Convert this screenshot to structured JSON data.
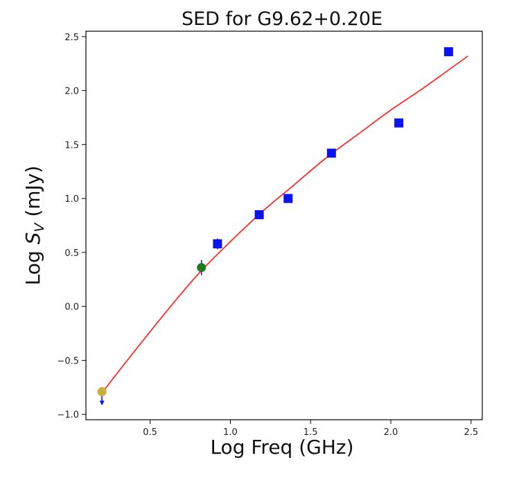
{
  "chart_data": {
    "type": "scatter",
    "title": "SED for G9.62+0.20E",
    "xlabel": "Log  Freq  (GHz)",
    "ylabel_prefix": "Log  ",
    "ylabel_symbol": "S",
    "ylabel_subscript": "V",
    "ylabel_suffix": " (mJy)",
    "xlim": [
      0.1,
      2.57
    ],
    "ylim": [
      -1.05,
      2.55
    ],
    "x_ticks": [
      {
        "value": 0.5,
        "label": "0.5"
      },
      {
        "value": 1.0,
        "label": "1.0"
      },
      {
        "value": 1.5,
        "label": "1.5"
      },
      {
        "value": 2.0,
        "label": "2.0"
      },
      {
        "value": 2.5,
        "label": "2.5"
      }
    ],
    "y_ticks": [
      {
        "value": -1.0,
        "label": "−1.0"
      },
      {
        "value": -0.5,
        "label": "−0.5"
      },
      {
        "value": 0.0,
        "label": "0.0"
      },
      {
        "value": 0.5,
        "label": "0.5"
      },
      {
        "value": 1.0,
        "label": "1.0"
      },
      {
        "value": 1.5,
        "label": "1.5"
      },
      {
        "value": 2.0,
        "label": "2.0"
      },
      {
        "value": 2.5,
        "label": "2.5"
      }
    ],
    "grid": false,
    "legend": "none",
    "series": [
      {
        "marker": "square",
        "color": "#0a14f0",
        "points": [
          {
            "x": 0.92,
            "y": 0.58,
            "err": 0.05
          },
          {
            "x": 1.18,
            "y": 0.85,
            "err": 0.03
          },
          {
            "x": 1.36,
            "y": 1.0,
            "err": 0.02
          },
          {
            "x": 1.63,
            "y": 1.42,
            "err": 0.02
          },
          {
            "x": 2.05,
            "y": 1.7,
            "err": 0.0
          },
          {
            "x": 2.36,
            "y": 2.36,
            "err": 0.0
          }
        ]
      },
      {
        "marker": "circle",
        "color": "#1e7a1e",
        "points": [
          {
            "x": 0.82,
            "y": 0.36,
            "err": 0.07
          }
        ]
      },
      {
        "marker": "circle",
        "color": "#c9ae3a",
        "upper_limit": true,
        "points": [
          {
            "x": 0.2,
            "y": -0.79
          }
        ]
      }
    ],
    "fit": {
      "color": "#ff2a2a",
      "x": [
        0.2,
        0.4,
        0.6,
        0.8,
        1.0,
        1.2,
        1.4,
        1.6,
        1.8,
        2.0,
        2.2,
        2.48
      ],
      "y": [
        -0.8,
        -0.42,
        -0.05,
        0.3,
        0.6,
        0.88,
        1.13,
        1.38,
        1.6,
        1.82,
        2.02,
        2.32
      ]
    },
    "colors": {
      "axis": "#000000",
      "errorbar": "#0a14f0"
    }
  }
}
